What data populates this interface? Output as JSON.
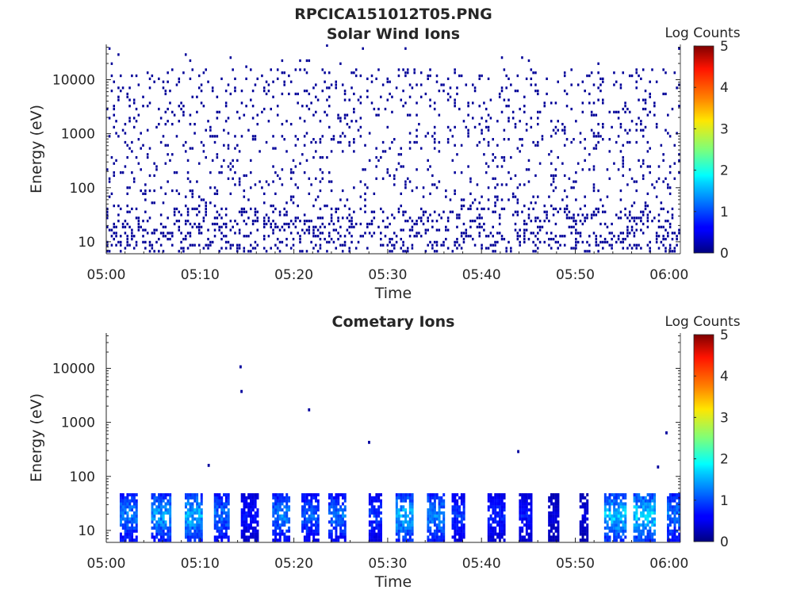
{
  "figure": {
    "title": "RPCICA151012T05.PNG"
  },
  "chart_data": [
    {
      "type": "heatmap",
      "title": "Solar Wind Ions",
      "xlabel": "Time",
      "ylabel": "Energy (eV)",
      "x_range": [
        "05:00",
        "06:01"
      ],
      "x_ticks": [
        "05:00",
        "05:10",
        "05:20",
        "05:30",
        "05:40",
        "05:50",
        "06:00"
      ],
      "y_scale": "log",
      "y_range": [
        6,
        45000
      ],
      "y_ticks": [
        10,
        100,
        1000,
        10000
      ],
      "y_tick_labels": [
        "10",
        "100",
        "1000",
        "10000"
      ],
      "colorbar": {
        "label": "Log Counts",
        "range": [
          0,
          5
        ],
        "ticks": [
          "0",
          "1",
          "2",
          "3",
          "4",
          "5"
        ],
        "colormap": "jet"
      },
      "description_values": {
        "background_level_log_counts": 0.1,
        "pattern": "sparse single-count pixels across all energies 10-15000 eV, denser below 40 eV"
      }
    },
    {
      "type": "heatmap",
      "title": "Cometary Ions",
      "xlabel": "Time",
      "ylabel": "Energy (eV)",
      "x_range": [
        "05:00",
        "06:01"
      ],
      "x_ticks": [
        "05:00",
        "05:10",
        "05:20",
        "05:30",
        "05:40",
        "05:50",
        "06:00"
      ],
      "y_scale": "log",
      "y_range": [
        6,
        45000
      ],
      "y_ticks": [
        10,
        100,
        1000,
        10000
      ],
      "y_tick_labels": [
        "10",
        "100",
        "1000",
        "10000"
      ],
      "colorbar": {
        "label": "Log Counts",
        "range": [
          0,
          5
        ],
        "ticks": [
          "0",
          "1",
          "2",
          "3",
          "4",
          "5"
        ],
        "colormap": "jet"
      },
      "bursts": [
        {
          "start_min": 1.5,
          "end_min": 3.0,
          "peak_log_counts": 1.4
        },
        {
          "start_min": 5.0,
          "end_min": 6.5,
          "peak_log_counts": 1.6
        },
        {
          "start_min": 8.5,
          "end_min": 10.0,
          "peak_log_counts": 1.7
        },
        {
          "start_min": 11.5,
          "end_min": 12.8,
          "peak_log_counts": 1.3
        },
        {
          "start_min": 14.5,
          "end_min": 16.0,
          "peak_log_counts": 0.8
        },
        {
          "start_min": 17.8,
          "end_min": 19.3,
          "peak_log_counts": 1.4
        },
        {
          "start_min": 20.8,
          "end_min": 22.3,
          "peak_log_counts": 1.2
        },
        {
          "start_min": 23.8,
          "end_min": 25.2,
          "peak_log_counts": 1.3
        },
        {
          "start_min": 28.2,
          "end_min": 29.0,
          "peak_log_counts": 1.0
        },
        {
          "start_min": 31.0,
          "end_min": 32.3,
          "peak_log_counts": 1.7
        },
        {
          "start_min": 34.2,
          "end_min": 35.7,
          "peak_log_counts": 1.5
        },
        {
          "start_min": 37.0,
          "end_min": 38.0,
          "peak_log_counts": 1.0
        },
        {
          "start_min": 40.8,
          "end_min": 42.2,
          "peak_log_counts": 0.9
        },
        {
          "start_min": 44.0,
          "end_min": 45.0,
          "peak_log_counts": 0.8
        },
        {
          "start_min": 47.3,
          "end_min": 48.0,
          "peak_log_counts": 0.5
        },
        {
          "start_min": 50.5,
          "end_min": 51.0,
          "peak_log_counts": 0.5
        },
        {
          "start_min": 53.3,
          "end_min": 55.0,
          "peak_log_counts": 1.8
        },
        {
          "start_min": 56.3,
          "end_min": 58.2,
          "peak_log_counts": 1.9
        },
        {
          "start_min": 59.8,
          "end_min": 60.8,
          "peak_log_counts": 1.4
        }
      ],
      "isolated_points": [
        {
          "time_min": 14.2,
          "energy_ev": 10000
        },
        {
          "time_min": 14.3,
          "energy_ev": 3500
        },
        {
          "time_min": 21.5,
          "energy_ev": 1600
        },
        {
          "time_min": 27.9,
          "energy_ev": 400
        },
        {
          "time_min": 43.8,
          "energy_ev": 270
        },
        {
          "time_min": 59.6,
          "energy_ev": 600
        },
        {
          "time_min": 10.8,
          "energy_ev": 150
        },
        {
          "time_min": 58.7,
          "energy_ev": 140
        }
      ]
    }
  ]
}
